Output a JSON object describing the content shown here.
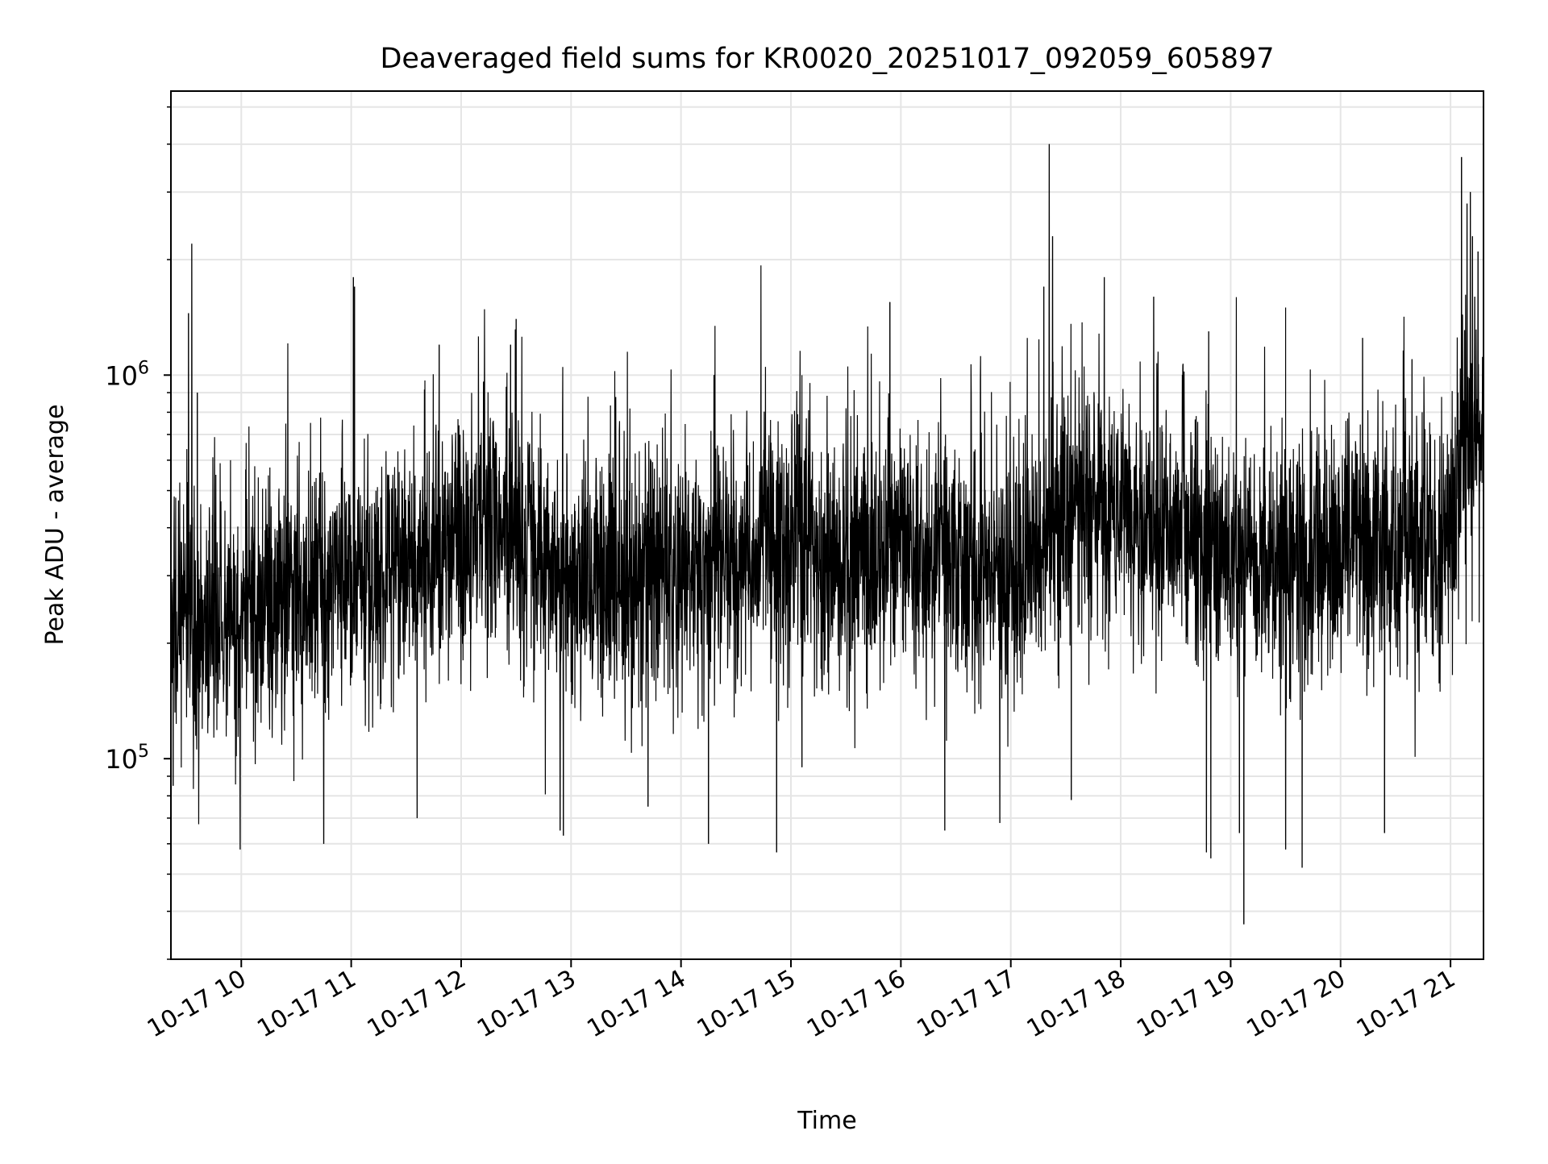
{
  "chart_data": {
    "type": "line",
    "title": "Deaveraged field sums for KR0020_20251017_092059_605897",
    "xlabel": "Time",
    "ylabel": "Peak ADU - average",
    "yscale": "log",
    "ylim": [
      30000,
      5500000
    ],
    "xlim_hours": [
      9.36,
      21.3
    ],
    "x_ticks": [
      {
        "hour": 10,
        "label": "10-17 10"
      },
      {
        "hour": 11,
        "label": "10-17 11"
      },
      {
        "hour": 12,
        "label": "10-17 12"
      },
      {
        "hour": 13,
        "label": "10-17 13"
      },
      {
        "hour": 14,
        "label": "10-17 14"
      },
      {
        "hour": 15,
        "label": "10-17 15"
      },
      {
        "hour": 16,
        "label": "10-17 16"
      },
      {
        "hour": 17,
        "label": "10-17 17"
      },
      {
        "hour": 18,
        "label": "10-17 18"
      },
      {
        "hour": 19,
        "label": "10-17 19"
      },
      {
        "hour": 20,
        "label": "10-17 20"
      },
      {
        "hour": 21,
        "label": "10-17 21"
      }
    ],
    "y_ticks": [
      {
        "value": 100000,
        "base": "10",
        "exp": "5"
      },
      {
        "value": 1000000,
        "base": "10",
        "exp": "6"
      }
    ],
    "grid": true,
    "line_color": "#000000",
    "grid_color": "#e5e5e5",
    "series": [
      {
        "name": "Peak ADU - average",
        "baseline": [
          [
            9.36,
            240000
          ],
          [
            10.0,
            230000
          ],
          [
            10.5,
            280000
          ],
          [
            11.0,
            290000
          ],
          [
            11.5,
            320000
          ],
          [
            12.0,
            380000
          ],
          [
            12.4,
            440000
          ],
          [
            12.8,
            320000
          ],
          [
            13.2,
            290000
          ],
          [
            13.6,
            310000
          ],
          [
            14.0,
            310000
          ],
          [
            14.5,
            330000
          ],
          [
            15.0,
            370000
          ],
          [
            15.5,
            330000
          ],
          [
            16.0,
            360000
          ],
          [
            16.5,
            330000
          ],
          [
            17.0,
            300000
          ],
          [
            17.3,
            360000
          ],
          [
            17.6,
            480000
          ],
          [
            18.0,
            430000
          ],
          [
            18.5,
            380000
          ],
          [
            19.0,
            350000
          ],
          [
            19.5,
            330000
          ],
          [
            20.0,
            360000
          ],
          [
            20.5,
            360000
          ],
          [
            21.0,
            370000
          ],
          [
            21.1,
            700000
          ],
          [
            21.3,
            650000
          ]
        ],
        "noise_decades": 0.17,
        "spikes": [
          [
            9.55,
            2200000
          ],
          [
            9.52,
            1450000
          ],
          [
            9.6,
            900000
          ],
          [
            11.02,
            1800000
          ],
          [
            11.03,
            1700000
          ],
          [
            12.5,
            1400000
          ],
          [
            12.45,
            1200000
          ],
          [
            11.8,
            1200000
          ],
          [
            15.9,
            1550000
          ],
          [
            14.3,
            1000000
          ],
          [
            15.1,
            1000000
          ],
          [
            17.35,
            4000000
          ],
          [
            17.38,
            2300000
          ],
          [
            17.3,
            1700000
          ],
          [
            17.85,
            1800000
          ],
          [
            18.3,
            1600000
          ],
          [
            18.8,
            1300000
          ],
          [
            19.5,
            1500000
          ],
          [
            20.2,
            1250000
          ],
          [
            20.65,
            1100000
          ],
          [
            21.1,
            3700000
          ],
          [
            21.15,
            2800000
          ],
          [
            21.18,
            3000000
          ],
          [
            21.25,
            2100000
          ],
          [
            21.2,
            2300000
          ],
          [
            21.22,
            1600000
          ]
        ],
        "dips": [
          [
            9.38,
            85000
          ],
          [
            9.99,
            58000
          ],
          [
            10.75,
            60000
          ],
          [
            11.6,
            70000
          ],
          [
            12.9,
            65000
          ],
          [
            12.93,
            63000
          ],
          [
            13.7,
            75000
          ],
          [
            14.25,
            60000
          ],
          [
            14.87,
            57000
          ],
          [
            15.1,
            95000
          ],
          [
            16.4,
            65000
          ],
          [
            16.9,
            68000
          ],
          [
            17.55,
            78000
          ],
          [
            18.78,
            57000
          ],
          [
            18.82,
            55000
          ],
          [
            19.12,
            37000
          ],
          [
            19.08,
            64000
          ],
          [
            19.5,
            58000
          ],
          [
            19.65,
            52000
          ],
          [
            20.4,
            64000
          ],
          [
            21.3,
            140000
          ]
        ]
      }
    ]
  }
}
